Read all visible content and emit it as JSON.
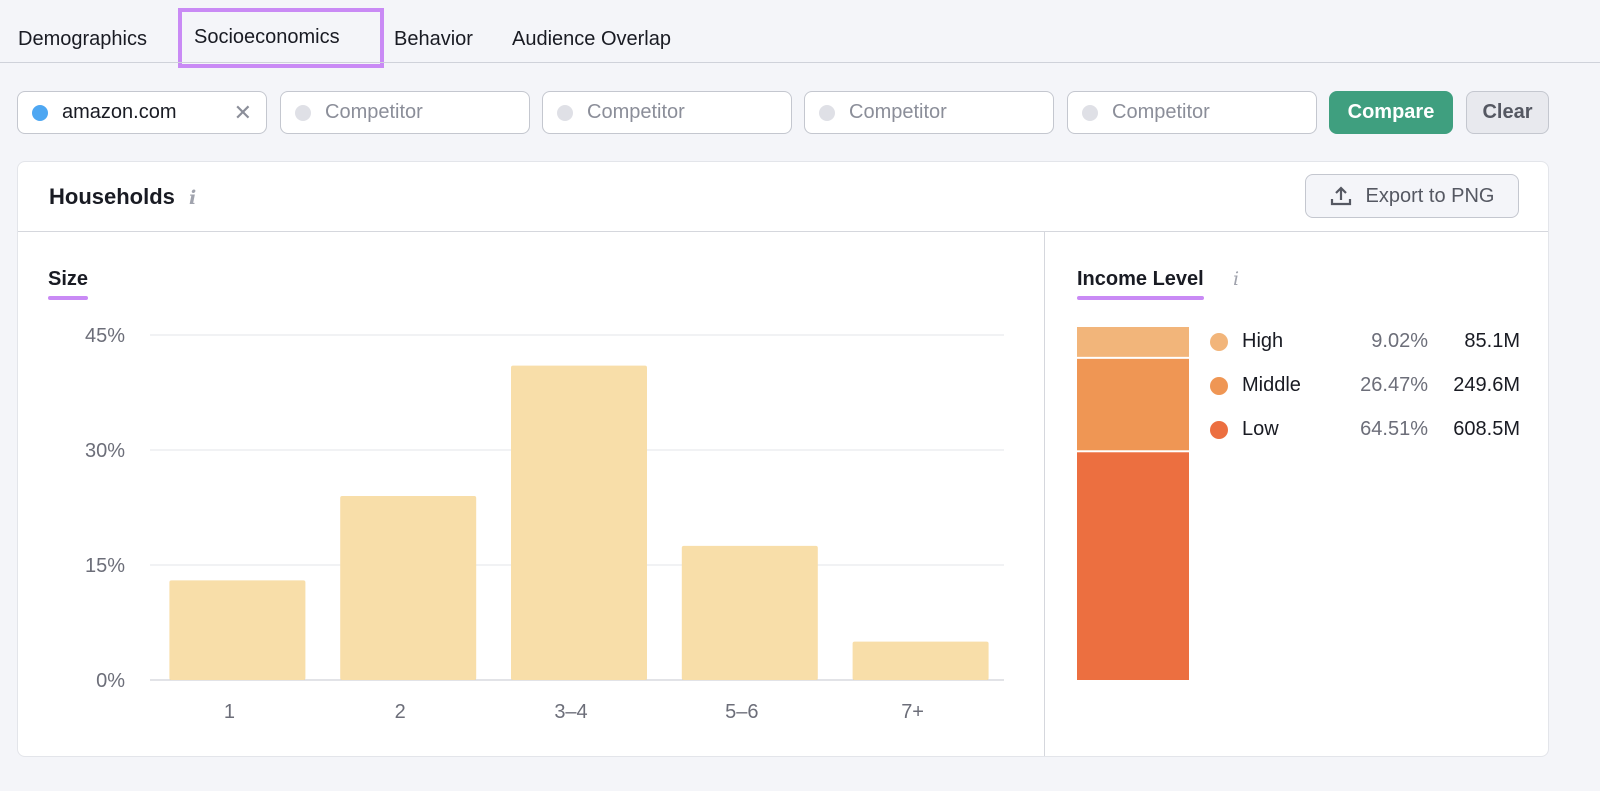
{
  "tabs": [
    {
      "label": "Demographics"
    },
    {
      "label": "Socioeconomics",
      "active": true
    },
    {
      "label": "Behavior"
    },
    {
      "label": "Audience Overlap"
    }
  ],
  "domains": [
    {
      "value": "amazon.com",
      "color": "#4ea7f2"
    },
    {
      "placeholder": "Competitor"
    },
    {
      "placeholder": "Competitor"
    },
    {
      "placeholder": "Competitor"
    },
    {
      "placeholder": "Competitor"
    }
  ],
  "compare_label": "Compare",
  "clear_label": "Clear",
  "clear_icon": "✕",
  "card": {
    "title": "Households",
    "info_icon": "i",
    "export_label": "Export to PNG"
  },
  "colors": {
    "accent": "#c98af5",
    "compare": "#3f9f7f",
    "bar": "#f8dea9"
  },
  "chart_data": [
    {
      "type": "bar",
      "title": "Size",
      "categories": [
        "1",
        "2",
        "3–4",
        "5–6",
        "7+"
      ],
      "values": [
        13,
        24,
        41,
        17.5,
        5
      ],
      "ylim": [
        0,
        45
      ],
      "yticks": [
        "0%",
        "15%",
        "30%",
        "45%"
      ],
      "ytick_values": [
        0,
        15,
        30,
        45
      ],
      "grid": true
    },
    {
      "type": "stacked-bar",
      "title": "Income Level",
      "series": [
        {
          "name": "High",
          "percent": "9.02%",
          "value": 9.02,
          "count": "85.1M",
          "color": "#f2b57a"
        },
        {
          "name": "Middle",
          "percent": "26.47%",
          "value": 26.47,
          "count": "249.6M",
          "color": "#ef9654"
        },
        {
          "name": "Low",
          "percent": "64.51%",
          "value": 64.51,
          "count": "608.5M",
          "color": "#ec6f40"
        }
      ]
    }
  ]
}
